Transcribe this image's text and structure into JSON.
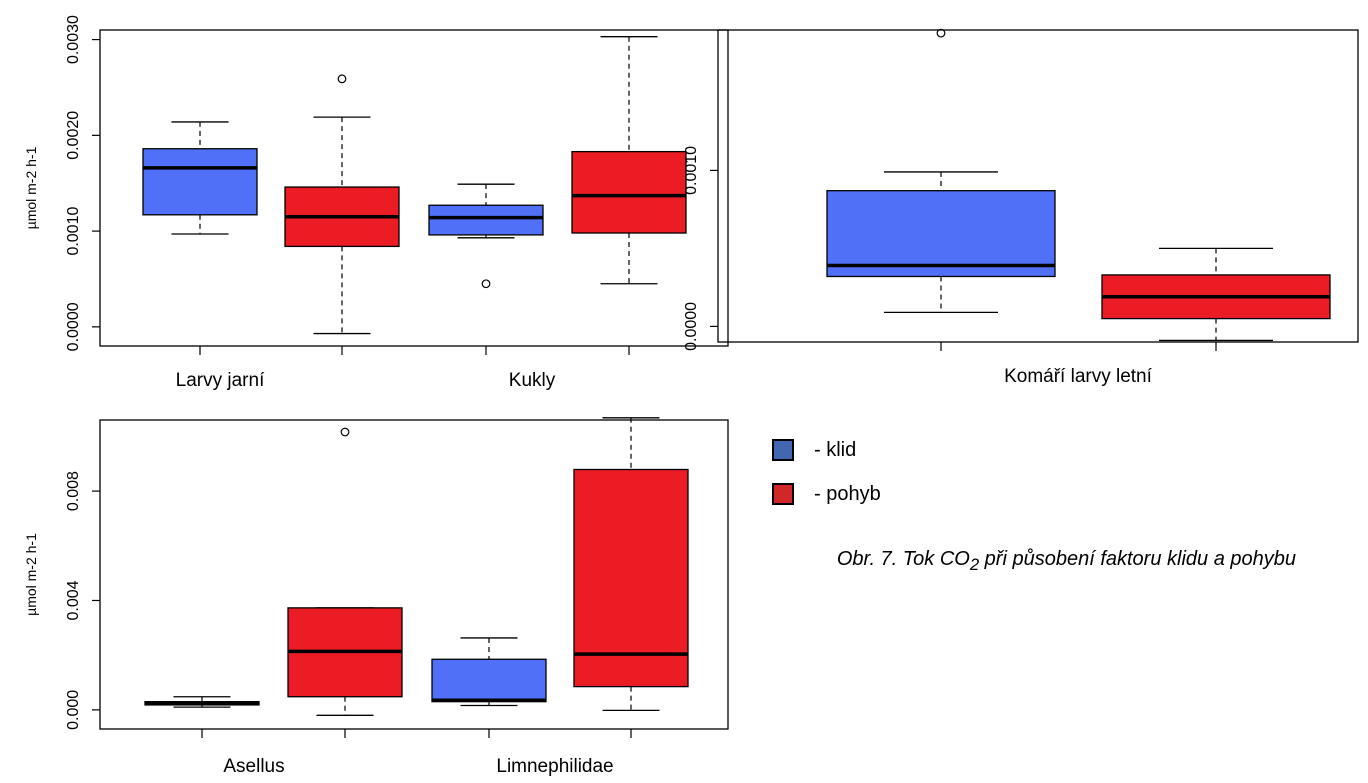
{
  "colors": {
    "klid": "#5070F8",
    "pohyb": "#EC1C24"
  },
  "legend": [
    {
      "label": "- klid",
      "color": "#4067B0"
    },
    {
      "label": "- pohyb",
      "color": "#D02828"
    }
  ],
  "caption": {
    "prefix": "Obr. 7. Tok CO",
    "sub": "2",
    "suffix": " při působení faktoru klidu a pohybu"
  },
  "chart_data": [
    {
      "type": "box",
      "ylabel": "µmol m-2 h-1",
      "ylim": [
        -0.0002,
        0.0031
      ],
      "yticks": [
        "0.0000",
        "0.0010",
        "0.0020",
        "0.0030"
      ],
      "categories": [
        "Larvy jarní",
        "Kukly"
      ],
      "boxes": [
        {
          "group": "klid",
          "min": 0.00097,
          "q1": 0.00117,
          "median": 0.00166,
          "q3": 0.00186,
          "max": 0.00214,
          "outliers": []
        },
        {
          "group": "pohyb",
          "min": -7e-05,
          "q1": 0.00084,
          "median": 0.00115,
          "q3": 0.00146,
          "max": 0.00219,
          "outliers": [
            0.00259
          ]
        },
        {
          "group": "klid",
          "min": 0.00093,
          "q1": 0.00096,
          "median": 0.00114,
          "q3": 0.00127,
          "max": 0.00149,
          "outliers": [
            0.00045
          ]
        },
        {
          "group": "pohyb",
          "min": 0.00045,
          "q1": 0.00098,
          "median": 0.00137,
          "q3": 0.00183,
          "max": 0.00303,
          "outliers": []
        }
      ]
    },
    {
      "type": "box",
      "ylabel": "",
      "ylim": [
        -0.0001,
        0.0019
      ],
      "yticks": [
        "0.0000",
        "0.0010"
      ],
      "categories": [
        "Komáří larvy letní"
      ],
      "boxes": [
        {
          "group": "klid",
          "min": 9e-05,
          "q1": 0.00032,
          "median": 0.00039,
          "q3": 0.00087,
          "max": 0.00099,
          "outliers": [
            0.00188
          ]
        },
        {
          "group": "pohyb",
          "min": -9e-05,
          "q1": 5e-05,
          "median": 0.00019,
          "q3": 0.00033,
          "max": 0.0005,
          "outliers": []
        }
      ]
    },
    {
      "type": "box",
      "ylabel": "µmol m-2 h-1",
      "ylim": [
        -0.0007,
        0.0106
      ],
      "yticks": [
        "0.000",
        "0.004",
        "0.008"
      ],
      "categories": [
        "Asellus",
        "Limnephilidae"
      ],
      "boxes": [
        {
          "group": "klid",
          "min": 0.0001,
          "q1": 0.00018,
          "median": 0.00024,
          "q3": 0.0003,
          "max": 0.00048,
          "outliers": []
        },
        {
          "group": "pohyb",
          "min": -0.0002,
          "q1": 0.00048,
          "median": 0.00214,
          "q3": 0.00373,
          "max": 0.00373,
          "outliers": [
            0.01016
          ]
        },
        {
          "group": "klid",
          "min": 0.00016,
          "q1": 0.0003,
          "median": 0.00035,
          "q3": 0.00185,
          "max": 0.00263,
          "outliers": []
        },
        {
          "group": "pohyb",
          "min": -2e-05,
          "q1": 0.00085,
          "median": 0.00204,
          "q3": 0.00879,
          "max": 0.01068,
          "outliers": []
        }
      ]
    }
  ]
}
